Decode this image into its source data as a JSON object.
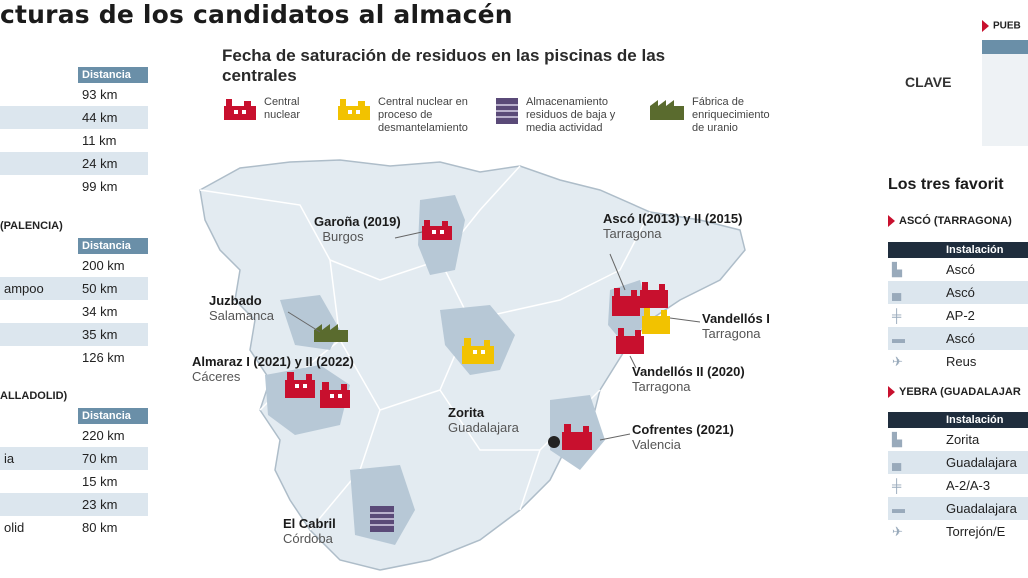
{
  "title": "cturas de los candidatos al almacén",
  "map_title": "Fecha de saturación de residuos en las piscinas de las centrales",
  "legend": [
    {
      "icon": "nuclear-plant-icon",
      "label": "Central nuclear",
      "color": "#c8102e"
    },
    {
      "icon": "dismantling-plant-icon",
      "label": "Central nuclear en proceso de desmantelamiento",
      "color": "#f2c200"
    },
    {
      "icon": "storage-icon",
      "label": "Almacenamiento residuos de baja y media actividad",
      "color": "#5a4a78"
    },
    {
      "icon": "uranium-factory-icon",
      "label": "Fábrica de enriquecimiento de uranio",
      "color": "#5a6b2e"
    }
  ],
  "left_tables": [
    {
      "heading": "",
      "col_header": "Distancia",
      "rows": [
        {
          "name": "",
          "distance": "93 km"
        },
        {
          "name": "",
          "distance": "44 km"
        },
        {
          "name": "",
          "distance": "11 km"
        },
        {
          "name": "",
          "distance": "24 km"
        },
        {
          "name": "",
          "distance": "99 km"
        }
      ]
    },
    {
      "heading": "(PALENCIA)",
      "col_header": "Distancia",
      "rows": [
        {
          "name": "",
          "distance": "200 km"
        },
        {
          "name": "ampoo",
          "distance": "50 km"
        },
        {
          "name": "",
          "distance": "34 km"
        },
        {
          "name": "",
          "distance": "35 km"
        },
        {
          "name": "",
          "distance": "126 km"
        }
      ]
    },
    {
      "heading": "ALLADOLID)",
      "col_header": "Distancia",
      "rows": [
        {
          "name": "",
          "distance": "220 km"
        },
        {
          "name": "ia",
          "distance": "70 km"
        },
        {
          "name": "",
          "distance": "15 km"
        },
        {
          "name": "",
          "distance": "23 km"
        },
        {
          "name": "olid",
          "distance": "80 km"
        }
      ]
    }
  ],
  "map_labels": {
    "garona": {
      "name": "Garoña (2019)",
      "region": "Burgos"
    },
    "asco": {
      "name": "Ascó I(2013) y II (2015)",
      "region": "Tarragona"
    },
    "juzbado": {
      "name": "Juzbado",
      "region": "Salamanca"
    },
    "vandellos1": {
      "name": "Vandellós I",
      "region": "Tarragona"
    },
    "almaraz": {
      "name": "Almaraz I (2021) y II (2022)",
      "region": "Cáceres"
    },
    "vandellos2": {
      "name": "Vandellós II (2020)",
      "region": "Tarragona"
    },
    "zorita": {
      "name": "Zorita",
      "region": "Guadalajara"
    },
    "cofrentes": {
      "name": "Cofrentes (2021)",
      "region": "Valencia"
    },
    "cabril": {
      "name": "El Cabril",
      "region": "Córdoba"
    }
  },
  "right": {
    "clave": "CLAVE",
    "pueblo_label": "PUEB",
    "favorites_title": "Los tres favorit",
    "sections": [
      {
        "heading": "ASCÓ (TARRAGONA)",
        "col_header": "Instalación",
        "rows": [
          "Ascó",
          "Ascó",
          "AP-2",
          "Ascó",
          "Reus"
        ]
      },
      {
        "heading": "YEBRA (GUADALAJAR",
        "col_header": "Instalación",
        "rows": [
          "Zorita",
          "Guadalajara",
          "A-2/A-3",
          "Guadalajara",
          "Torrejón/E"
        ]
      }
    ]
  }
}
